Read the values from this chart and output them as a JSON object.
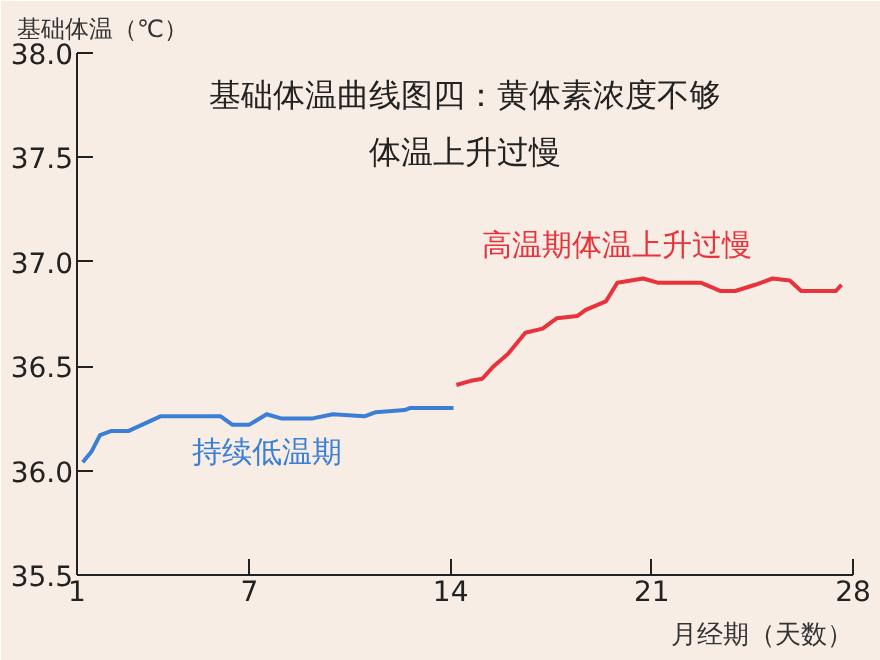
{
  "chart_data": {
    "type": "line",
    "title": "基础体温曲线图四：黄体素浓度不够体温上升过慢",
    "ylabel": "基础体温（℃）",
    "xlabel": "月经期（天数）",
    "xlim": [
      1,
      28
    ],
    "xticks": [
      1,
      7,
      14,
      21,
      28
    ],
    "ylim": [
      35.5,
      38.0
    ],
    "yticks": [
      35.5,
      {
        "value": 36,
        "label": "36.0"
      },
      36.5,
      {
        "value": 37,
        "label": "37.0"
      },
      37.5,
      {
        "value": 38,
        "label": "38.0"
      }
    ],
    "grid": false,
    "legend": false,
    "marker": "none",
    "line_style": "solid",
    "series": [
      {
        "name": "持续低温期",
        "color": "#3a7fd5",
        "x": [
          1.2,
          1.5,
          1.8,
          2.2,
          2.8,
          3.9,
          6.0,
          6.4,
          7.0,
          7.6,
          8.1,
          9.2,
          9.9,
          11.0,
          11.4,
          12.4,
          12.6,
          14.1
        ],
        "values": [
          36.04,
          36.09,
          36.17,
          36.19,
          36.19,
          36.26,
          36.26,
          36.22,
          36.22,
          36.27,
          36.25,
          36.25,
          36.27,
          36.26,
          36.28,
          36.29,
          36.3,
          36.3
        ]
      },
      {
        "name": "高温期体温上升过慢",
        "color": "#e8323c",
        "x": [
          14.2,
          14.7,
          15.1,
          15.5,
          16.0,
          16.3,
          16.6,
          17.2,
          17.7,
          18.4,
          18.7,
          19.4,
          19.8,
          20.7,
          21.2,
          22.7,
          23.4,
          23.9,
          24.6,
          25.2,
          25.8,
          26.2,
          27.4,
          27.6
        ],
        "values": [
          36.41,
          36.43,
          36.44,
          36.5,
          36.56,
          36.61,
          36.66,
          36.68,
          36.73,
          36.74,
          36.77,
          36.81,
          36.9,
          36.92,
          36.9,
          36.9,
          36.86,
          36.86,
          36.89,
          36.92,
          36.91,
          36.86,
          36.86,
          36.89
        ]
      }
    ]
  }
}
